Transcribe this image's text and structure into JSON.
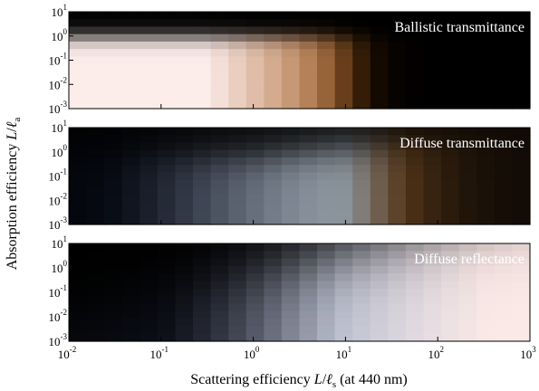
{
  "chart_data": {
    "type": "heatmap",
    "xlabel": {
      "main": "Scattering efficiency ",
      "var": "L",
      "sep": "/",
      "sym": "ℓ",
      "sub": "s",
      "tail": " (at 440 nm)"
    },
    "ylabel": {
      "main": "Absorption efficiency ",
      "var": "L",
      "sep": "/",
      "sym": "ℓ",
      "sub": "a"
    },
    "x_scale": "log",
    "y_scale": "log",
    "xlim": [
      0.01,
      1000
    ],
    "ylim": [
      0.001,
      10
    ],
    "x_ticks": [
      {
        "base": "10",
        "exp": "-2"
      },
      {
        "base": "10",
        "exp": "-1"
      },
      {
        "base": "10",
        "exp": "0"
      },
      {
        "base": "10",
        "exp": "1"
      },
      {
        "base": "10",
        "exp": "2"
      },
      {
        "base": "10",
        "exp": "3"
      }
    ],
    "y_ticks": [
      {
        "base": "10",
        "exp": "-3"
      },
      {
        "base": "10",
        "exp": "-2"
      },
      {
        "base": "10",
        "exp": "-1"
      },
      {
        "base": "10",
        "exp": "0"
      },
      {
        "base": "10",
        "exp": "1"
      }
    ],
    "grid": false,
    "grid_size": {
      "nx": 26,
      "ny": 13
    },
    "panels": [
      {
        "title": "Ballistic transmittance",
        "model": "ballistic"
      },
      {
        "title": "Diffuse transmittance",
        "model": "diffuse_t"
      },
      {
        "title": "Diffuse reflectance",
        "model": "diffuse_r"
      }
    ]
  }
}
